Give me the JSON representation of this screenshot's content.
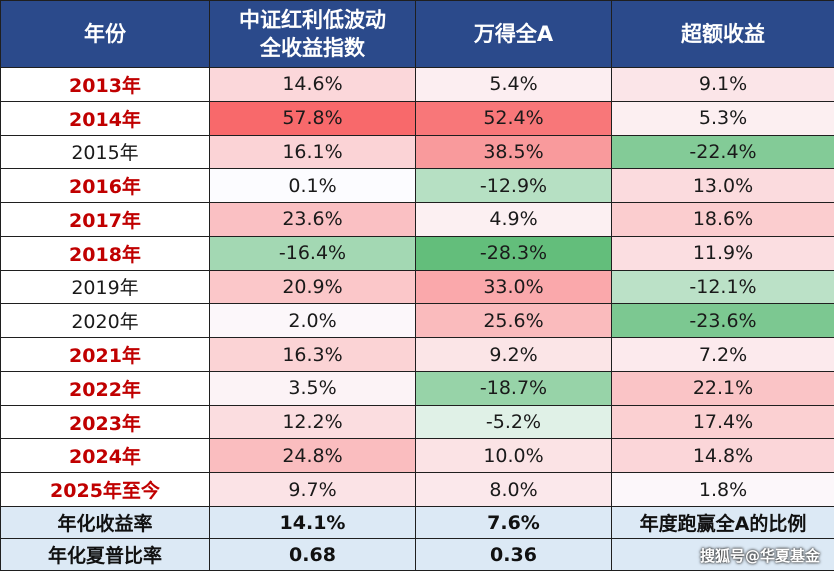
{
  "header": {
    "col_year": "年份",
    "col_index_line1": "中证红利低波动",
    "col_index_line2": "全收益指数",
    "col_market": "万得全A",
    "col_excess": "超额收益"
  },
  "colors": {
    "header_bg": "#2b4a8b",
    "positive_max": "#f8696b",
    "negative_max": "#63be7b",
    "neutral": "#fcfcff",
    "year_highlight_text": "#c00000",
    "footer_bg": "#dce9f5"
  },
  "chart_data": {
    "type": "table",
    "columns": [
      "年份",
      "中证红利低波动全收益指数",
      "万得全A",
      "超额收益"
    ],
    "rows": [
      {
        "year": "2013年",
        "highlight": true,
        "index": "14.6%",
        "index_v": 14.6,
        "market": "5.4%",
        "market_v": 5.4,
        "excess": "9.1%",
        "excess_v": 9.1
      },
      {
        "year": "2014年",
        "highlight": true,
        "index": "57.8%",
        "index_v": 57.8,
        "market": "52.4%",
        "market_v": 52.4,
        "excess": "5.3%",
        "excess_v": 5.3
      },
      {
        "year": "2015年",
        "highlight": false,
        "index": "16.1%",
        "index_v": 16.1,
        "market": "38.5%",
        "market_v": 38.5,
        "excess": "-22.4%",
        "excess_v": -22.4
      },
      {
        "year": "2016年",
        "highlight": true,
        "index": "0.1%",
        "index_v": 0.1,
        "market": "-12.9%",
        "market_v": -12.9,
        "excess": "13.0%",
        "excess_v": 13.0
      },
      {
        "year": "2017年",
        "highlight": true,
        "index": "23.6%",
        "index_v": 23.6,
        "market": "4.9%",
        "market_v": 4.9,
        "excess": "18.6%",
        "excess_v": 18.6
      },
      {
        "year": "2018年",
        "highlight": true,
        "index": "-16.4%",
        "index_v": -16.4,
        "market": "-28.3%",
        "market_v": -28.3,
        "excess": "11.9%",
        "excess_v": 11.9
      },
      {
        "year": "2019年",
        "highlight": false,
        "index": "20.9%",
        "index_v": 20.9,
        "market": "33.0%",
        "market_v": 33.0,
        "excess": "-12.1%",
        "excess_v": -12.1
      },
      {
        "year": "2020年",
        "highlight": false,
        "index": "2.0%",
        "index_v": 2.0,
        "market": "25.6%",
        "market_v": 25.6,
        "excess": "-23.6%",
        "excess_v": -23.6
      },
      {
        "year": "2021年",
        "highlight": true,
        "index": "16.3%",
        "index_v": 16.3,
        "market": "9.2%",
        "market_v": 9.2,
        "excess": "7.2%",
        "excess_v": 7.2
      },
      {
        "year": "2022年",
        "highlight": true,
        "index": "3.5%",
        "index_v": 3.5,
        "market": "-18.7%",
        "market_v": -18.7,
        "excess": "22.1%",
        "excess_v": 22.1
      },
      {
        "year": "2023年",
        "highlight": true,
        "index": "12.2%",
        "index_v": 12.2,
        "market": "-5.2%",
        "market_v": -5.2,
        "excess": "17.4%",
        "excess_v": 17.4
      },
      {
        "year": "2024年",
        "highlight": true,
        "index": "24.8%",
        "index_v": 24.8,
        "market": "10.0%",
        "market_v": 10.0,
        "excess": "14.8%",
        "excess_v": 14.8
      },
      {
        "year": "2025年至今",
        "highlight": true,
        "index": "9.7%",
        "index_v": 9.7,
        "market": "8.0%",
        "market_v": 8.0,
        "excess": "1.8%",
        "excess_v": 1.8
      }
    ]
  },
  "footer": {
    "annual_return_label": "年化收益率",
    "annual_return_index": "14.1%",
    "annual_return_market": "7.6%",
    "annual_return_note": "年度跑赢全A的比例",
    "sharpe_label": "年化夏普比率",
    "sharpe_index": "0.68",
    "sharpe_market": "0.36"
  },
  "watermark": "搜狐号@华夏基金"
}
